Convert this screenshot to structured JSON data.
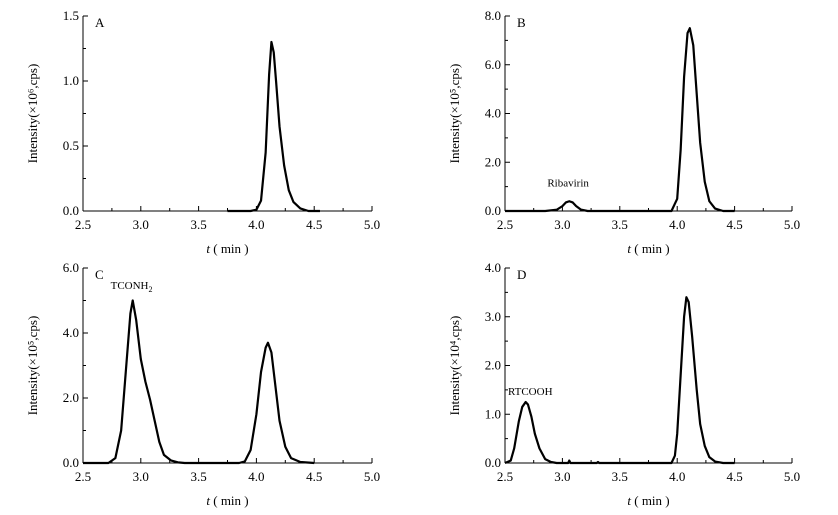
{
  "chart_data": [
    {
      "type": "line",
      "panel_label": "A",
      "xlabel": {
        "italic": "t",
        "rest": " ( min )"
      },
      "ylabel": "Intensity(×10⁶,cps)",
      "xlim": [
        2.5,
        5.0
      ],
      "ylim": [
        0,
        1.5
      ],
      "xticks": [
        "2.5",
        "3.0",
        "3.5",
        "4.0",
        "4.5",
        "5.0"
      ],
      "yticks": [
        "0.0",
        "0.5",
        "1.0",
        "1.5"
      ],
      "annotations": [],
      "series": [
        {
          "x": [
            3.75,
            3.95,
            4.0,
            4.04,
            4.08,
            4.11,
            4.13,
            4.15,
            4.17,
            4.2,
            4.24,
            4.28,
            4.32,
            4.38,
            4.45,
            4.55
          ],
          "y": [
            0.0,
            0.0,
            0.01,
            0.08,
            0.45,
            1.05,
            1.3,
            1.22,
            1.0,
            0.65,
            0.35,
            0.16,
            0.07,
            0.02,
            0.0,
            0.0
          ]
        }
      ]
    },
    {
      "type": "line",
      "panel_label": "B",
      "xlabel": {
        "italic": "t",
        "rest": " ( min )"
      },
      "ylabel": "Intensity(×10⁵,cps)",
      "xlim": [
        2.5,
        5.0
      ],
      "ylim": [
        0,
        8.0
      ],
      "xticks": [
        "2.5",
        "3.0",
        "3.5",
        "4.0",
        "4.5",
        "5.0"
      ],
      "yticks": [
        "0.0",
        "2.0",
        "4.0",
        "6.0",
        "8.0"
      ],
      "annotations": [
        {
          "text": "Ribavirin",
          "x": 3.05,
          "y": 1.0
        }
      ],
      "series": [
        {
          "x": [
            2.5,
            2.85,
            2.95,
            3.0,
            3.03,
            3.06,
            3.09,
            3.12,
            3.16,
            3.22,
            3.3,
            3.95,
            4.0,
            4.03,
            4.06,
            4.09,
            4.11,
            4.14,
            4.17,
            4.2,
            4.24,
            4.28,
            4.33,
            4.4,
            4.5
          ],
          "y": [
            0.0,
            0.0,
            0.05,
            0.2,
            0.35,
            0.4,
            0.35,
            0.2,
            0.06,
            0.0,
            0.0,
            0.0,
            0.5,
            2.5,
            5.5,
            7.3,
            7.5,
            6.8,
            4.8,
            2.8,
            1.2,
            0.4,
            0.1,
            0.0,
            0.0
          ]
        }
      ]
    },
    {
      "type": "line",
      "panel_label": "C",
      "xlabel": {
        "italic": "t",
        "rest": " ( min )"
      },
      "ylabel": "Intensity(×10⁵,cps)",
      "xlim": [
        2.5,
        5.0
      ],
      "ylim": [
        0,
        6.0
      ],
      "xticks": [
        "2.5",
        "3.0",
        "3.5",
        "4.0",
        "4.5",
        "5.0"
      ],
      "yticks": [
        "0.0",
        "2.0",
        "4.0",
        "6.0"
      ],
      "annotations": [
        {
          "text": "TCONH",
          "sub": "2",
          "x": 2.92,
          "y": 5.35
        }
      ],
      "series": [
        {
          "x": [
            2.5,
            2.72,
            2.78,
            2.83,
            2.87,
            2.91,
            2.93,
            2.96,
            3.0,
            3.04,
            3.08,
            3.12,
            3.16,
            3.2,
            3.26,
            3.32,
            3.38,
            3.5,
            3.85,
            3.9,
            3.95,
            4.0,
            4.04,
            4.08,
            4.1,
            4.13,
            4.16,
            4.2,
            4.25,
            4.3,
            4.38,
            4.5
          ],
          "y": [
            0.0,
            0.0,
            0.15,
            1.0,
            2.8,
            4.6,
            5.0,
            4.4,
            3.2,
            2.5,
            1.95,
            1.3,
            0.65,
            0.25,
            0.08,
            0.02,
            0.0,
            0.0,
            0.0,
            0.05,
            0.4,
            1.5,
            2.8,
            3.55,
            3.7,
            3.4,
            2.5,
            1.3,
            0.5,
            0.15,
            0.03,
            0.0
          ]
        }
      ]
    },
    {
      "type": "line",
      "panel_label": "D",
      "xlabel": {
        "italic": "t",
        "rest": " ( min )"
      },
      "ylabel": "Intensity(×10⁴,cps)",
      "xlim": [
        2.5,
        5.0
      ],
      "ylim": [
        0,
        4.0
      ],
      "xticks": [
        "2.5",
        "3.0",
        "3.5",
        "4.0",
        "4.5",
        "5.0"
      ],
      "yticks": [
        "0.0",
        "1.0",
        "2.0",
        "3.0",
        "4.0"
      ],
      "annotations": [
        {
          "text": "RTCOOH",
          "x": 2.72,
          "y": 1.4
        }
      ],
      "series": [
        {
          "x": [
            2.5,
            2.55,
            2.58,
            2.62,
            2.65,
            2.68,
            2.7,
            2.73,
            2.76,
            2.8,
            2.85,
            2.9,
            2.95,
            3.0,
            3.05,
            3.06,
            3.07,
            3.2,
            3.3,
            3.31,
            3.32,
            3.45,
            3.95,
            3.98,
            4.0,
            4.03,
            4.06,
            4.08,
            4.1,
            4.13,
            4.17,
            4.2,
            4.24,
            4.28,
            4.33,
            4.4,
            4.5
          ],
          "y": [
            0.0,
            0.05,
            0.3,
            0.85,
            1.15,
            1.25,
            1.2,
            0.95,
            0.6,
            0.3,
            0.08,
            0.02,
            0.0,
            0.0,
            0.0,
            0.05,
            0.0,
            0.0,
            0.0,
            0.02,
            0.0,
            0.0,
            0.0,
            0.15,
            0.6,
            1.8,
            3.0,
            3.4,
            3.3,
            2.6,
            1.5,
            0.8,
            0.35,
            0.12,
            0.03,
            0.0,
            0.0
          ]
        }
      ]
    }
  ]
}
